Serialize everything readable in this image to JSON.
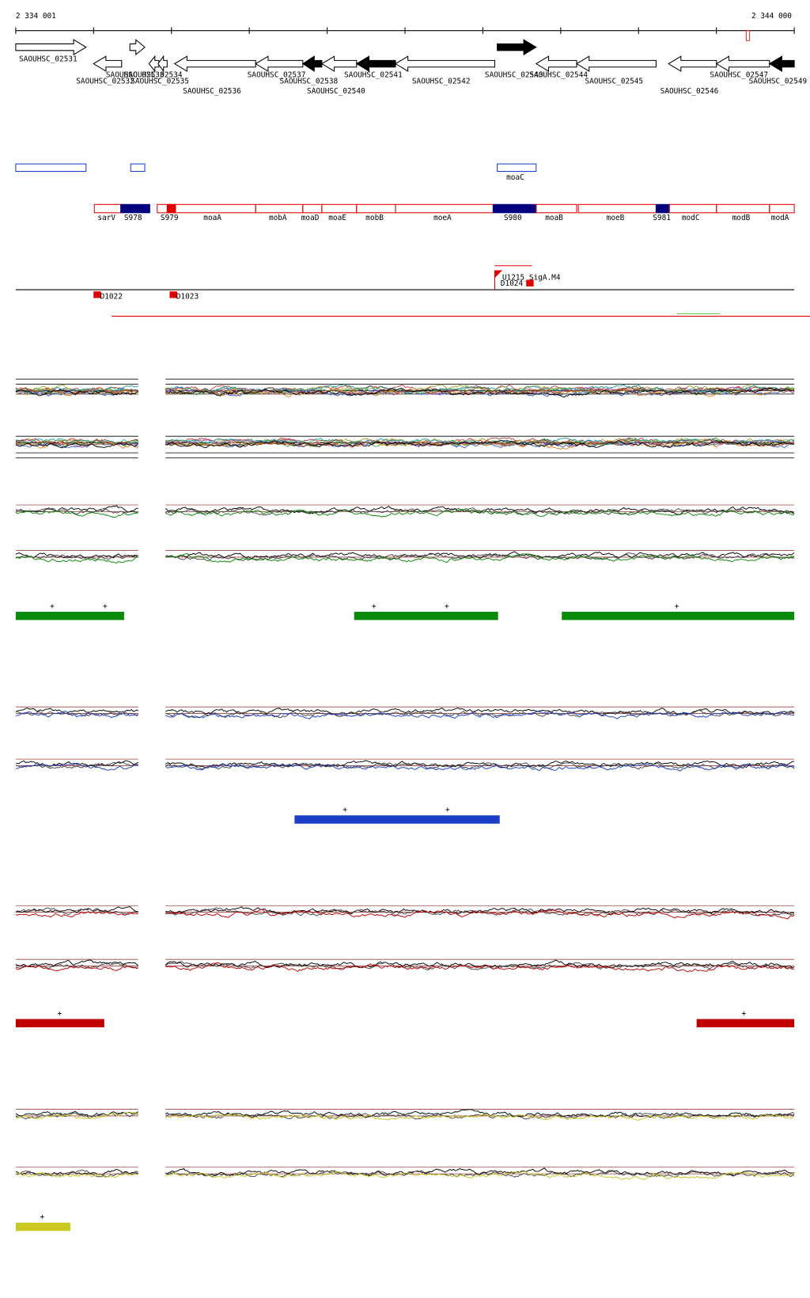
{
  "header": {
    "start": "2 334 001",
    "end": "2 344 000"
  },
  "genes": [
    "SAOUHSC_02531",
    "SAOUHSC_02532",
    "SAOUHSC_02533",
    "SAOUHSC_02534",
    "SAOUHSC_02535",
    "SAOUHSC_02536",
    "SAOUHSC_02537",
    "SAOUHSC_02538",
    "SAOUHSC_02540",
    "SAOUHSC_02541",
    "SAOUHSC_02542",
    "SAOUHSC_02543",
    "SAOUHSC_02544",
    "SAOUHSC_02545",
    "SAOUHSC_02546",
    "SAOUHSC_02547",
    "SAOUHSC_02549"
  ],
  "motifs": [
    "moaC"
  ],
  "regions": [
    "sarV",
    "S978",
    "S979",
    "moaA",
    "mobA",
    "moaD",
    "moaE",
    "mobB",
    "moeA",
    "S980",
    "moaB",
    "moeB",
    "S981",
    "modC",
    "modB",
    "modA"
  ],
  "features": [
    "U1215_SigA.M4",
    "D1022",
    "D1023",
    "D1024"
  ],
  "marker": "+"
}
